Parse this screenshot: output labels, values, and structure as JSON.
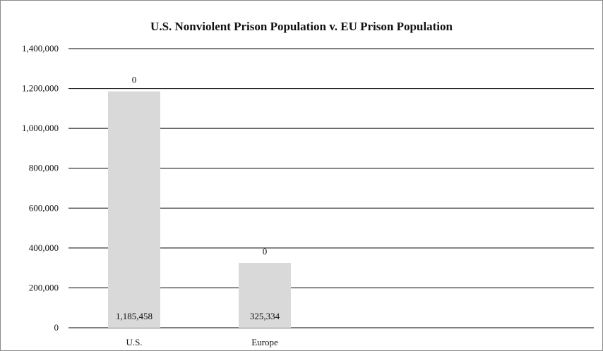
{
  "chart_data": {
    "type": "bar",
    "title": "U.S. Nonviolent Prison Population v. EU Prison Population",
    "categories": [
      "U.S.",
      "Europe"
    ],
    "values": [
      1185458,
      325334
    ],
    "value_labels": [
      "1,185,458",
      "325,334"
    ],
    "top_labels": [
      "0",
      "0"
    ],
    "ylim": [
      0,
      1400000
    ],
    "yticks": [
      0,
      200000,
      400000,
      600000,
      800000,
      1000000,
      1200000,
      1400000
    ],
    "ytick_labels": [
      "0",
      "200,000",
      "400,000",
      "600,000",
      "800,000",
      "1,000,000",
      "1,200,000",
      "1,400,000"
    ],
    "grid": true,
    "legend": "none",
    "bar_color": "#d9d9d9",
    "grid_color": "#000000"
  }
}
